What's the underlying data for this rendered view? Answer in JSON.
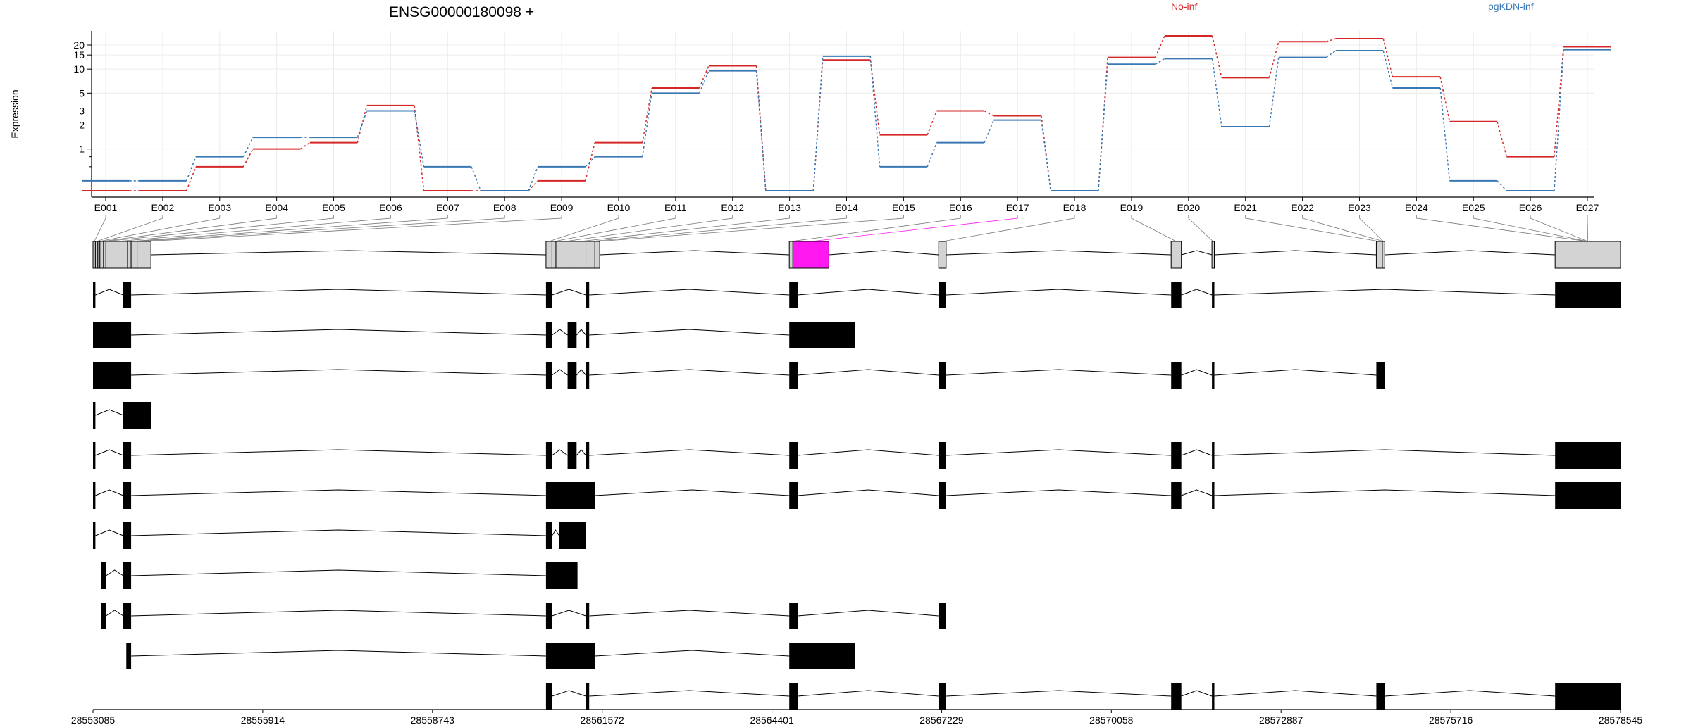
{
  "chart_data": {
    "type": "line",
    "title": "ENSG00000180098 +",
    "xlabel": "",
    "ylabel": "Expression",
    "y_scale": "log",
    "y_ticks": [
      1,
      2,
      3,
      5,
      10,
      15,
      20
    ],
    "ylim": [
      0.25,
      30
    ],
    "grid": true,
    "legend_placement": "top",
    "categories": [
      "E001",
      "E002",
      "E003",
      "E004",
      "E005",
      "E006",
      "E007",
      "E008",
      "E009",
      "E010",
      "E011",
      "E012",
      "E013",
      "E014",
      "E015",
      "E016",
      "E017",
      "E018",
      "E019",
      "E020",
      "E021",
      "E022",
      "E023",
      "E024",
      "E025",
      "E026",
      "E027"
    ],
    "series": [
      {
        "name": "No-inf",
        "color": "#d62728",
        "values": [
          0.3,
          0.3,
          0.6,
          1.0,
          1.2,
          3.5,
          0.3,
          0.3,
          0.4,
          1.2,
          5.8,
          11.0,
          0.3,
          13.0,
          1.5,
          3.0,
          2.6,
          0.3,
          14.0,
          26.0,
          7.8,
          22.0,
          24.0,
          8.0,
          2.2,
          0.8,
          19.0
        ]
      },
      {
        "name": "pgKDN-inf",
        "color": "#3a78b5",
        "values": [
          0.4,
          0.4,
          0.8,
          1.4,
          1.4,
          3.0,
          0.6,
          0.3,
          0.6,
          0.8,
          5.0,
          9.5,
          0.3,
          14.5,
          0.6,
          1.2,
          2.3,
          0.3,
          11.5,
          13.5,
          1.9,
          14.0,
          17.0,
          5.8,
          0.4,
          0.3,
          17.5
        ]
      }
    ],
    "genome": {
      "start": 28553085,
      "end": 28578545,
      "ticks": [
        28553085,
        28555914,
        28558743,
        28561572,
        28564401,
        28567229,
        28570058,
        28572887,
        28575716,
        28578545
      ],
      "tick_labels": [
        "28553085",
        "28555914",
        "28558743",
        "28561572",
        "28564401",
        "28567229",
        "28570058",
        "28572887",
        "28575716",
        "28578545"
      ],
      "bins": [
        [
          28553085,
          28553125
        ],
        [
          28553125,
          28553165
        ],
        [
          28553165,
          28553200
        ],
        [
          28553200,
          28553260
        ],
        [
          28553260,
          28553300
        ],
        [
          28553300,
          28553660
        ],
        [
          28553660,
          28553720
        ],
        [
          28553720,
          28553820
        ],
        [
          28553820,
          28554050
        ],
        [
          28560635,
          28560735
        ],
        [
          28560735,
          28560800
        ],
        [
          28560800,
          28561100
        ],
        [
          28561100,
          28561300
        ],
        [
          28561300,
          28561450
        ],
        [
          28561450,
          28561530
        ],
        [
          28564690,
          28564750
        ],
        [
          28564750,
          28565350
        ],
        [
          28567180,
          28567305
        ],
        [
          28571055,
          28571225
        ],
        [
          28571735,
          28571775
        ],
        [
          28574475,
          28574575
        ],
        [
          28574575,
          28574615
        ],
        [
          28577455,
          28578545
        ]
      ],
      "highlight_bin": 16,
      "highlight_color": "#ff19f0",
      "bin_color": "#d3d3d3",
      "label_to_bin": [
        0,
        1,
        2,
        3,
        4,
        5,
        6,
        7,
        8,
        9,
        10,
        11,
        12,
        13,
        14,
        15,
        16,
        17,
        18,
        19,
        20,
        21,
        21,
        22,
        22,
        22,
        22
      ],
      "transcripts": [
        [
          [
            28553085,
            28553125
          ],
          [
            28553590,
            28553720
          ],
          [
            28560635,
            28560735
          ],
          [
            28561300,
            28561355
          ],
          [
            28564690,
            28564830
          ],
          [
            28567180,
            28567305
          ],
          [
            28571055,
            28571225
          ],
          [
            28571735,
            28571775
          ],
          [
            28577455,
            28578545
          ]
        ],
        [
          [
            28553085,
            28553720
          ],
          [
            28560635,
            28560735
          ],
          [
            28560995,
            28561145
          ],
          [
            28561300,
            28561355
          ],
          [
            28564690,
            28565790
          ]
        ],
        [
          [
            28553085,
            28553720
          ],
          [
            28560635,
            28560735
          ],
          [
            28560995,
            28561145
          ],
          [
            28561300,
            28561355
          ],
          [
            28564690,
            28564830
          ],
          [
            28567180,
            28567305
          ],
          [
            28571055,
            28571225
          ],
          [
            28571735,
            28571775
          ],
          [
            28574475,
            28574615
          ]
        ],
        [
          [
            28553085,
            28553125
          ],
          [
            28553590,
            28554050
          ]
        ],
        [
          [
            28553085,
            28553125
          ],
          [
            28553590,
            28553720
          ],
          [
            28560635,
            28560735
          ],
          [
            28560995,
            28561145
          ],
          [
            28561300,
            28561355
          ],
          [
            28564690,
            28564830
          ],
          [
            28567180,
            28567305
          ],
          [
            28571055,
            28571225
          ],
          [
            28571735,
            28571775
          ],
          [
            28577455,
            28578545
          ]
        ],
        [
          [
            28553085,
            28553125
          ],
          [
            28553590,
            28553720
          ],
          [
            28560635,
            28561450
          ],
          [
            28564690,
            28564830
          ],
          [
            28567180,
            28567305
          ],
          [
            28571055,
            28571225
          ],
          [
            28571735,
            28571775
          ],
          [
            28577455,
            28578545
          ]
        ],
        [
          [
            28553085,
            28553125
          ],
          [
            28553590,
            28553720
          ],
          [
            28560635,
            28560735
          ],
          [
            28560855,
            28561300
          ]
        ],
        [
          [
            28553220,
            28553300
          ],
          [
            28553590,
            28553720
          ],
          [
            28560635,
            28561160
          ]
        ],
        [
          [
            28553220,
            28553300
          ],
          [
            28553590,
            28553720
          ],
          [
            28560635,
            28560735
          ],
          [
            28561300,
            28561355
          ],
          [
            28564690,
            28564830
          ],
          [
            28567180,
            28567305
          ]
        ],
        [
          [
            28553640,
            28553720
          ],
          [
            28560635,
            28561450
          ],
          [
            28564690,
            28565790
          ]
        ],
        [
          [
            28560635,
            28560735
          ],
          [
            28561300,
            28561355
          ],
          [
            28564690,
            28564830
          ],
          [
            28567180,
            28567305
          ],
          [
            28571055,
            28571225
          ],
          [
            28571735,
            28571775
          ],
          [
            28574475,
            28574615
          ],
          [
            28577455,
            28578545
          ]
        ]
      ]
    }
  }
}
